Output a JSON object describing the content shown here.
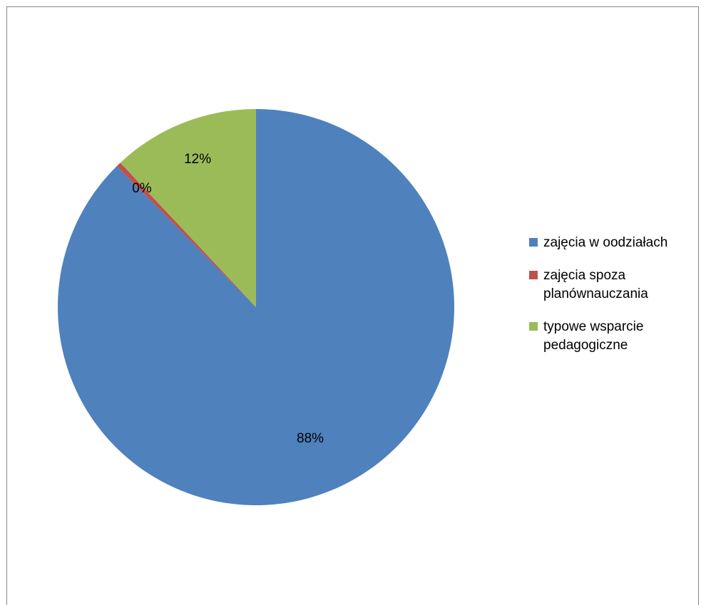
{
  "chart_data": {
    "type": "pie",
    "title": "",
    "start_angle_deg": 0,
    "direction": "clockwise",
    "legend_position": "right",
    "slices": [
      {
        "label": "zajęcia w oodziałach",
        "value": 87.6,
        "display": "88%",
        "color": "#4F81BD"
      },
      {
        "label": "zajęcia spoza planównauczania",
        "value": 0.4,
        "display": "0%",
        "color": "#C0504D"
      },
      {
        "label": "typowe wsparcie pedagogiczne",
        "value": 12.0,
        "display": "12%",
        "color": "#9BBB59"
      }
    ]
  }
}
